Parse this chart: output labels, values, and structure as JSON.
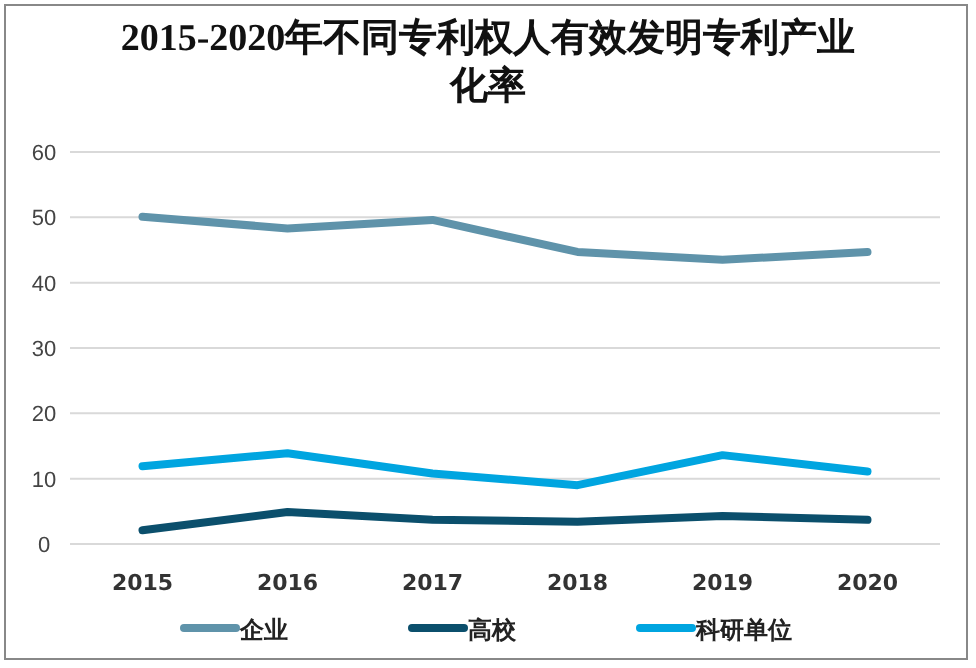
{
  "chart_data": {
    "type": "line",
    "title": "2015-2020年不同专利权人有效发明专利产业化率",
    "categories": [
      "2015",
      "2016",
      "2017",
      "2018",
      "2019",
      "2020"
    ],
    "series": [
      {
        "name": "企业",
        "color": "#5f93aa",
        "values": [
          50.1,
          48.3,
          49.6,
          44.7,
          43.5,
          44.7
        ]
      },
      {
        "name": "高校",
        "color": "#0b4f6c",
        "values": [
          2.1,
          4.9,
          3.7,
          3.4,
          4.3,
          3.7
        ]
      },
      {
        "name": "科研单位",
        "color": "#00a5e0",
        "values": [
          11.9,
          13.9,
          10.8,
          9.0,
          13.6,
          11.1
        ]
      }
    ],
    "ylim": [
      0,
      60
    ],
    "yticks": [
      0,
      10,
      20,
      30,
      40,
      50,
      60
    ],
    "grid": "y",
    "legend": "bottom",
    "marker": "none",
    "line_style": "solid"
  }
}
